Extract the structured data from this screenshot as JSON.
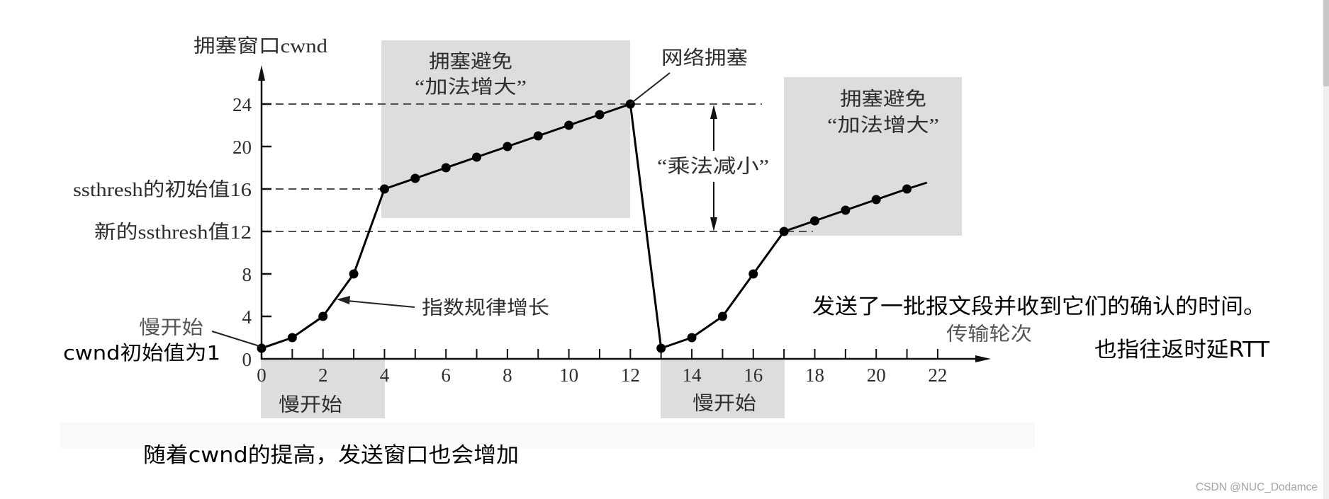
{
  "chart_data": {
    "type": "line",
    "title": "",
    "xlabel": "传输轮次",
    "ylabel": "拥塞窗口cwnd",
    "x": [
      0,
      1,
      2,
      3,
      4,
      5,
      6,
      7,
      8,
      9,
      10,
      11,
      12,
      13,
      14,
      15,
      16,
      17,
      18,
      19,
      20,
      21
    ],
    "series": [
      {
        "name": "cwnd",
        "values": [
          1,
          2,
          4,
          8,
          16,
          17,
          18,
          19,
          20,
          21,
          22,
          23,
          24,
          1,
          2,
          4,
          8,
          12,
          13,
          14,
          15,
          16
        ]
      }
    ],
    "line_tail": {
      "x": 21.65,
      "y": 16.6
    },
    "x_ticks": [
      0,
      2,
      4,
      6,
      8,
      10,
      12,
      14,
      16,
      18,
      20,
      22
    ],
    "y_ticks": [
      {
        "value": 0,
        "label": "0"
      },
      {
        "value": 4,
        "label": "4"
      },
      {
        "value": 8,
        "label": "8"
      },
      {
        "value": 12,
        "label": "新的ssthresh值12"
      },
      {
        "value": 16,
        "label": "ssthresh的初始值16"
      },
      {
        "value": 20,
        "label": "20"
      },
      {
        "value": 24,
        "label": "24"
      }
    ],
    "xlim": [
      0,
      22
    ],
    "ylim": [
      0,
      24
    ],
    "grid": false,
    "legend": null,
    "reference_lines": [
      {
        "y": 24,
        "x_end": 16.28,
        "style": "dashed"
      },
      {
        "y": 16,
        "x_end": 4,
        "style": "dashed"
      },
      {
        "y": 12,
        "x_end": 17.94,
        "style": "dashed"
      }
    ],
    "regions": [
      {
        "phase": "slow_start",
        "from": 0,
        "to": 4
      },
      {
        "phase": "congestion_avoidance",
        "from": 4,
        "to": 12
      },
      {
        "phase": "slow_start",
        "from": 13,
        "to": 17
      },
      {
        "phase": "congestion_avoidance",
        "from": 17,
        "to": 22.8
      }
    ],
    "annotations": {
      "slow_start_pointer": "慢开始",
      "exponential_growth": "指数规律增长",
      "congestion_avoidance_1": {
        "line1": "拥塞避免",
        "line2": "“加法增大”"
      },
      "network_congestion": "网络拥塞",
      "multiplicative_decrease": "“乘法减小”",
      "congestion_avoidance_2": {
        "line1": "拥塞避免",
        "line2": "“加法增大”"
      },
      "slow_start_region_1": "慢开始",
      "slow_start_region_2": "慢开始"
    }
  },
  "notes": {
    "cwnd_initial": "cwnd初始值为1",
    "round_definition": "发送了一批报文段并收到它们的确认的时间。",
    "rtt": "也指往返时延RTT",
    "send_window": "随着cwnd的提高，发送窗口也会增加"
  },
  "watermark": "CSDN @NUC_Dodamce",
  "colors": {
    "shade": "#dddddd",
    "line": "#000000",
    "dashed": "#505050",
    "axis": "#111111",
    "text": "#2e2e2e",
    "note_text": "#000000",
    "watermark": "#a3a3a3"
  }
}
